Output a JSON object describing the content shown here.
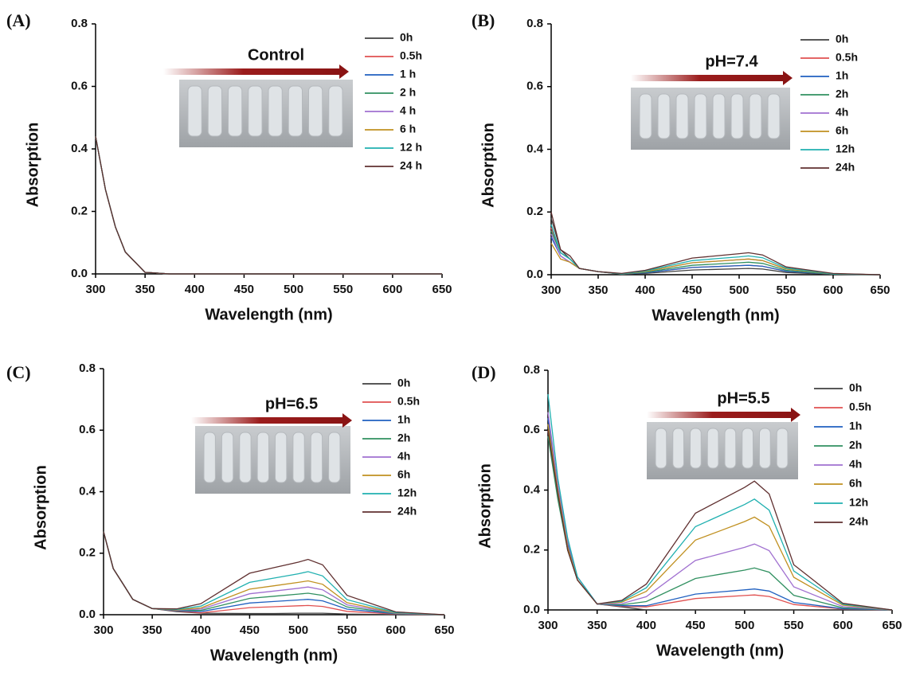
{
  "chart_data": [
    {
      "type": "line",
      "panel": "(A)",
      "annotation": "Control",
      "xlabel": "Wavelength (nm)",
      "ylabel": "Absorption",
      "x": [
        300,
        310,
        320,
        330,
        350,
        375,
        400,
        450,
        475,
        500,
        510,
        525,
        550,
        600,
        650
      ],
      "xlim": [
        300,
        650
      ],
      "xticks": [
        300,
        350,
        400,
        450,
        500,
        550,
        600,
        650
      ],
      "ylim": [
        0,
        0.8
      ],
      "yticks": [
        {
          "value": 0,
          "label": "0.0"
        },
        0.2,
        0.4,
        0.6,
        0.8
      ],
      "series": [
        {
          "name": "0h",
          "color": "#404040",
          "values": [
            0.44,
            0.27,
            0.15,
            0.07,
            0.005,
            0,
            0,
            0,
            0,
            0,
            0,
            0,
            0,
            0,
            0
          ]
        },
        {
          "name": "0.5h",
          "color": "#e05050",
          "values": [
            0.44,
            0.27,
            0.15,
            0.07,
            0.005,
            0,
            0,
            0,
            0,
            0,
            0,
            0,
            0,
            0,
            0
          ]
        },
        {
          "name": "1 h",
          "color": "#2060c0",
          "values": [
            0.44,
            0.27,
            0.15,
            0.07,
            0.005,
            0,
            0,
            0,
            0,
            0,
            0,
            0,
            0,
            0,
            0
          ]
        },
        {
          "name": "2 h",
          "color": "#309060",
          "values": [
            0.44,
            0.27,
            0.15,
            0.07,
            0.005,
            0,
            0,
            0,
            0,
            0,
            0,
            0,
            0,
            0,
            0
          ]
        },
        {
          "name": "4 h",
          "color": "#a070d0",
          "values": [
            0.44,
            0.27,
            0.15,
            0.07,
            0.005,
            0,
            0,
            0,
            0,
            0,
            0,
            0,
            0,
            0,
            0
          ]
        },
        {
          "name": "6 h",
          "color": "#c09020",
          "values": [
            0.44,
            0.27,
            0.15,
            0.07,
            0.005,
            0,
            0,
            0,
            0,
            0,
            0,
            0,
            0,
            0,
            0
          ]
        },
        {
          "name": "12 h",
          "color": "#20b0b0",
          "values": [
            0.44,
            0.27,
            0.15,
            0.07,
            0.005,
            0,
            0,
            0,
            0,
            0,
            0,
            0,
            0,
            0,
            0
          ]
        },
        {
          "name": "24 h",
          "color": "#603030",
          "values": [
            0.44,
            0.27,
            0.15,
            0.07,
            0.005,
            0,
            0,
            0,
            0,
            0,
            0,
            0,
            0,
            0,
            0
          ]
        }
      ]
    },
    {
      "type": "line",
      "panel": "(B)",
      "annotation": "pH=7.4",
      "xlabel": "Wavelength (nm)",
      "ylabel": "Absorption",
      "x": [
        300,
        310,
        320,
        330,
        350,
        375,
        400,
        450,
        475,
        500,
        510,
        525,
        550,
        600,
        650
      ],
      "xlim": [
        300,
        650
      ],
      "xticks": [
        300,
        350,
        400,
        450,
        500,
        550,
        600,
        650
      ],
      "ylim": [
        0,
        0.8
      ],
      "yticks": [
        {
          "value": 0,
          "label": "0.0"
        },
        0.2,
        0.4,
        0.6,
        0.8
      ],
      "series": [
        {
          "name": "0h",
          "color": "#404040",
          "values": [
            0.18,
            0.08,
            0.05,
            0.02,
            0.01,
            0.001,
            0.004,
            0.015,
            0.017,
            0.019,
            0.02,
            0.018,
            0.007,
            0.001,
            0
          ]
        },
        {
          "name": "0.5h",
          "color": "#e05050",
          "values": [
            0.15,
            0.07,
            0.05,
            0.02,
            0.01,
            0.002,
            0.006,
            0.023,
            0.026,
            0.029,
            0.03,
            0.027,
            0.011,
            0.002,
            0
          ]
        },
        {
          "name": "1h",
          "color": "#2060c0",
          "values": [
            0.12,
            0.06,
            0.04,
            0.02,
            0.01,
            0.002,
            0.006,
            0.023,
            0.026,
            0.029,
            0.03,
            0.027,
            0.011,
            0.002,
            0
          ]
        },
        {
          "name": "2h",
          "color": "#309060",
          "values": [
            0.14,
            0.07,
            0.05,
            0.02,
            0.01,
            0.002,
            0.008,
            0.03,
            0.034,
            0.038,
            0.04,
            0.036,
            0.014,
            0.002,
            0
          ]
        },
        {
          "name": "4h",
          "color": "#a070d0",
          "values": [
            0.13,
            0.06,
            0.04,
            0.02,
            0.01,
            0.003,
            0.01,
            0.038,
            0.043,
            0.048,
            0.05,
            0.045,
            0.018,
            0.003,
            0
          ]
        },
        {
          "name": "6h",
          "color": "#c09020",
          "values": [
            0.1,
            0.05,
            0.04,
            0.02,
            0.01,
            0.003,
            0.01,
            0.038,
            0.043,
            0.048,
            0.05,
            0.045,
            0.018,
            0.003,
            0
          ]
        },
        {
          "name": "12h",
          "color": "#20b0b0",
          "values": [
            0.16,
            0.07,
            0.05,
            0.02,
            0.01,
            0.003,
            0.012,
            0.045,
            0.051,
            0.057,
            0.06,
            0.054,
            0.021,
            0.003,
            0
          ]
        },
        {
          "name": "24h",
          "color": "#603030",
          "values": [
            0.2,
            0.08,
            0.06,
            0.02,
            0.01,
            0.004,
            0.014,
            0.053,
            0.06,
            0.067,
            0.07,
            0.063,
            0.025,
            0.004,
            0
          ]
        }
      ]
    },
    {
      "type": "line",
      "panel": "(C)",
      "annotation": "pH=6.5",
      "xlabel": "Wavelength (nm)",
      "ylabel": "Absorption",
      "x": [
        300,
        310,
        320,
        330,
        350,
        375,
        400,
        450,
        475,
        500,
        510,
        525,
        550,
        600,
        650
      ],
      "xlim": [
        300,
        650
      ],
      "xticks": [
        300,
        350,
        400,
        450,
        500,
        550,
        600,
        650
      ],
      "ylim": [
        0,
        0.8
      ],
      "yticks": [
        {
          "value": 0,
          "label": "0.0"
        },
        0.2,
        0.4,
        0.6,
        0.8
      ],
      "series": [
        {
          "name": "0h",
          "color": "#404040",
          "values": [
            0.27,
            0.15,
            0.1,
            0.05,
            0.02,
            0.01,
            0.005,
            0.004,
            0.004,
            0.005,
            0.005,
            0.005,
            0.002,
            0,
            0
          ]
        },
        {
          "name": "0.5h",
          "color": "#e05050",
          "values": [
            0.27,
            0.15,
            0.1,
            0.05,
            0.02,
            0.012,
            0.006,
            0.023,
            0.026,
            0.029,
            0.03,
            0.027,
            0.011,
            0.002,
            0
          ]
        },
        {
          "name": "1h",
          "color": "#2060c0",
          "values": [
            0.27,
            0.15,
            0.1,
            0.05,
            0.02,
            0.013,
            0.01,
            0.038,
            0.043,
            0.048,
            0.05,
            0.045,
            0.018,
            0.003,
            0
          ]
        },
        {
          "name": "2h",
          "color": "#309060",
          "values": [
            0.27,
            0.15,
            0.1,
            0.05,
            0.02,
            0.014,
            0.014,
            0.053,
            0.06,
            0.067,
            0.07,
            0.063,
            0.025,
            0.004,
            0
          ]
        },
        {
          "name": "4h",
          "color": "#a070d0",
          "values": [
            0.27,
            0.15,
            0.1,
            0.05,
            0.02,
            0.015,
            0.018,
            0.068,
            0.077,
            0.086,
            0.09,
            0.081,
            0.032,
            0.005,
            0
          ]
        },
        {
          "name": "6h",
          "color": "#c09020",
          "values": [
            0.27,
            0.15,
            0.1,
            0.05,
            0.02,
            0.016,
            0.022,
            0.083,
            0.094,
            0.105,
            0.11,
            0.099,
            0.039,
            0.006,
            0
          ]
        },
        {
          "name": "12h",
          "color": "#20b0b0",
          "values": [
            0.27,
            0.15,
            0.1,
            0.05,
            0.02,
            0.017,
            0.028,
            0.105,
            0.119,
            0.133,
            0.14,
            0.126,
            0.049,
            0.007,
            0
          ]
        },
        {
          "name": "24h",
          "color": "#603030",
          "values": [
            0.27,
            0.15,
            0.1,
            0.05,
            0.02,
            0.019,
            0.036,
            0.135,
            0.153,
            0.171,
            0.18,
            0.162,
            0.063,
            0.009,
            0
          ]
        }
      ]
    },
    {
      "type": "line",
      "panel": "(D)",
      "annotation": "pH=5.5",
      "xlabel": "Wavelength (nm)",
      "ylabel": "Absorption",
      "x": [
        300,
        310,
        320,
        330,
        350,
        375,
        400,
        450,
        475,
        500,
        510,
        525,
        550,
        600,
        650
      ],
      "xlim": [
        300,
        650
      ],
      "xticks": [
        300,
        350,
        400,
        450,
        500,
        550,
        600,
        650
      ],
      "ylim": [
        0,
        0.8
      ],
      "yticks": [
        {
          "value": 0,
          "label": "0.0"
        },
        0.2,
        0.4,
        0.6,
        0.8
      ],
      "series": [
        {
          "name": "0h",
          "color": "#404040",
          "values": [
            0.62,
            0.4,
            0.2,
            0.1,
            0.02,
            0.01,
            0,
            0,
            0,
            0,
            0,
            0,
            0,
            0,
            0
          ]
        },
        {
          "name": "0.5h",
          "color": "#e05050",
          "values": [
            0.6,
            0.38,
            0.21,
            0.1,
            0.02,
            0.012,
            0.01,
            0.038,
            0.043,
            0.048,
            0.05,
            0.045,
            0.018,
            0.003,
            0
          ]
        },
        {
          "name": "1h",
          "color": "#2060c0",
          "values": [
            0.64,
            0.41,
            0.22,
            0.11,
            0.02,
            0.014,
            0.014,
            0.053,
            0.06,
            0.067,
            0.07,
            0.063,
            0.025,
            0.004,
            0
          ]
        },
        {
          "name": "2h",
          "color": "#309060",
          "values": [
            0.58,
            0.37,
            0.2,
            0.1,
            0.02,
            0.017,
            0.028,
            0.105,
            0.119,
            0.133,
            0.14,
            0.126,
            0.049,
            0.007,
            0
          ]
        },
        {
          "name": "4h",
          "color": "#a070d0",
          "values": [
            0.66,
            0.42,
            0.23,
            0.11,
            0.02,
            0.021,
            0.044,
            0.165,
            0.187,
            0.209,
            0.22,
            0.198,
            0.077,
            0.011,
            0
          ]
        },
        {
          "name": "6h",
          "color": "#c09020",
          "values": [
            0.62,
            0.4,
            0.21,
            0.1,
            0.02,
            0.026,
            0.062,
            0.233,
            0.264,
            0.295,
            0.31,
            0.279,
            0.109,
            0.016,
            0
          ]
        },
        {
          "name": "12h",
          "color": "#20b0b0",
          "values": [
            0.72,
            0.44,
            0.24,
            0.11,
            0.02,
            0.029,
            0.074,
            0.278,
            0.315,
            0.352,
            0.37,
            0.333,
            0.13,
            0.019,
            0
          ]
        },
        {
          "name": "24h",
          "color": "#603030",
          "values": [
            0.6,
            0.39,
            0.2,
            0.1,
            0.02,
            0.032,
            0.086,
            0.323,
            0.366,
            0.409,
            0.43,
            0.387,
            0.151,
            0.022,
            0
          ]
        }
      ]
    }
  ]
}
